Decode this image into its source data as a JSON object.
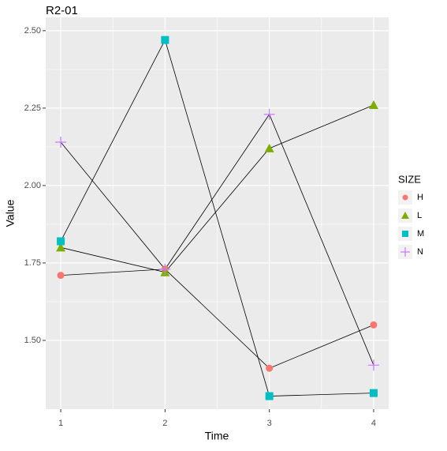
{
  "chart_data": {
    "type": "line",
    "title": "R2-01",
    "x_label": "Time",
    "y_label": "Value",
    "x": [
      1,
      2,
      3,
      4
    ],
    "xlim": [
      0.856,
      4.144
    ],
    "xticks": [
      1,
      2,
      3,
      4
    ],
    "ylim": [
      1.278,
      2.543
    ],
    "yticks": [
      1.5,
      1.75,
      2.0,
      2.25,
      2.5
    ],
    "grid": true,
    "legend_title": "SIZE",
    "legend_position": "right",
    "line_color": "#000000",
    "series": [
      {
        "name": "H",
        "color": "#F8766D",
        "shape": "circle",
        "values": [
          1.71,
          1.73,
          1.41,
          1.55
        ]
      },
      {
        "name": "L",
        "color": "#7CAE00",
        "shape": "triangle",
        "values": [
          1.8,
          1.72,
          2.12,
          2.26
        ]
      },
      {
        "name": "M",
        "color": "#00BFC4",
        "shape": "square",
        "values": [
          1.82,
          2.47,
          1.32,
          1.33
        ]
      },
      {
        "name": "N",
        "color": "#C77CFF",
        "shape": "plus",
        "values": [
          2.14,
          1.73,
          2.23,
          1.42
        ]
      }
    ]
  }
}
